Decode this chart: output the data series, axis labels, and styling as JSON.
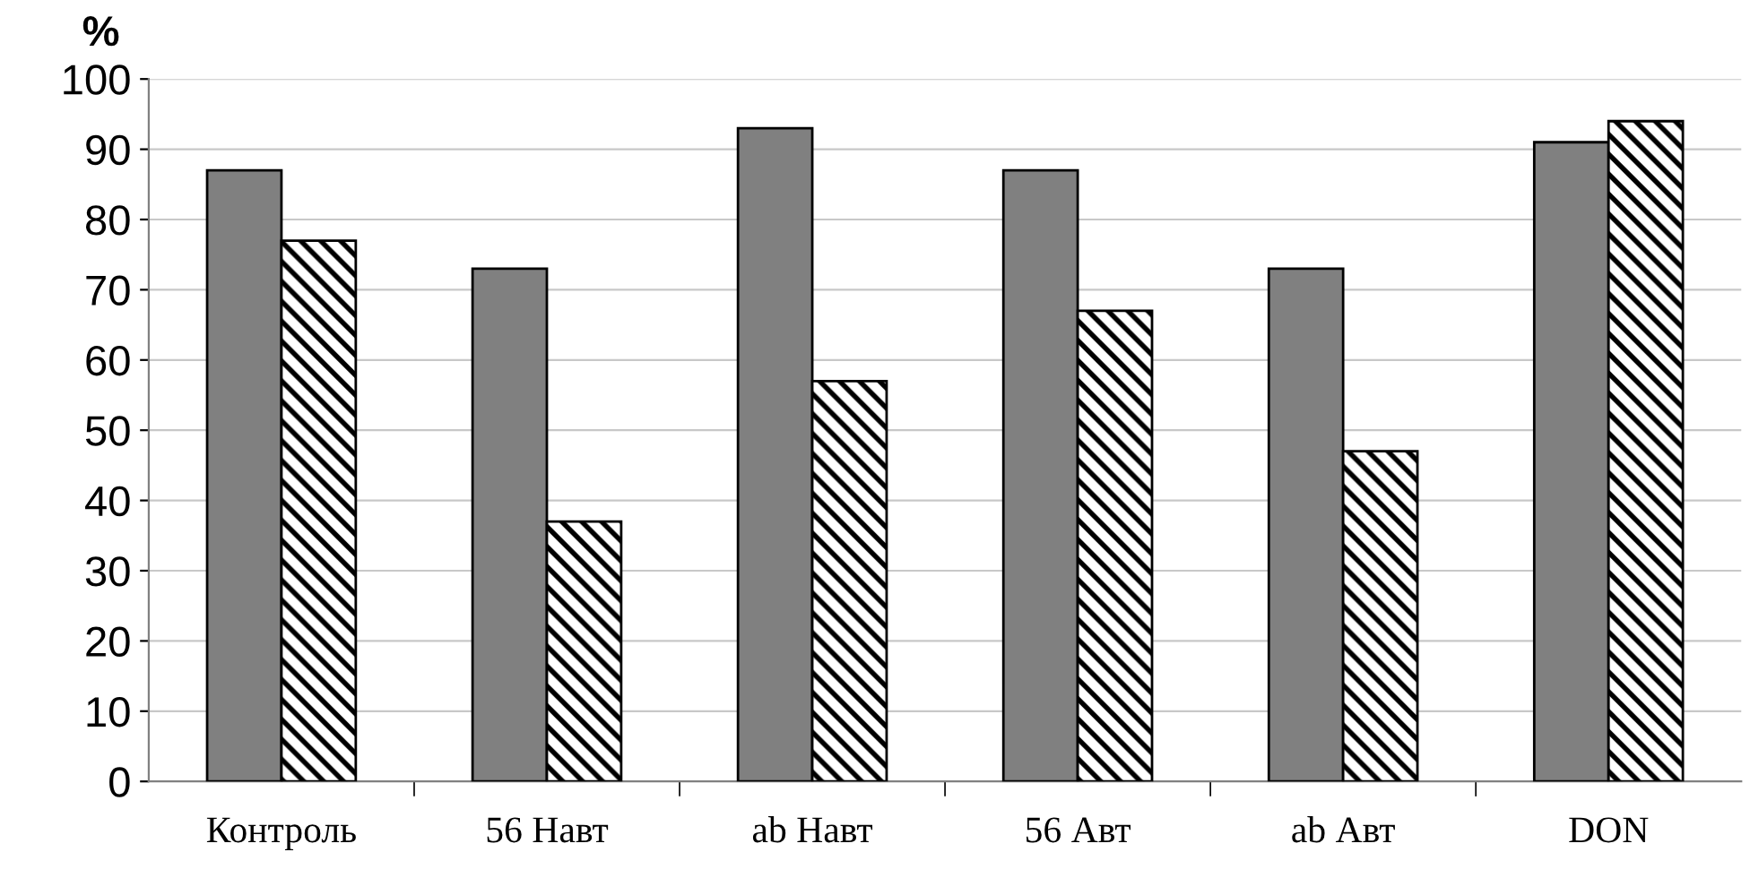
{
  "chart_data": {
    "type": "bar",
    "ylabel": "%",
    "categories": [
      "Контроль",
      "56 Навт",
      "ab Навт",
      "56 Авт",
      "ab Авт",
      "DON"
    ],
    "series": [
      {
        "color": "#808080",
        "values": [
          87,
          73,
          93,
          87,
          73,
          91
        ]
      },
      {
        "color": "#000000",
        "values": [
          77,
          37,
          57,
          67,
          47,
          94
        ]
      }
    ],
    "ylim": [
      0,
      100
    ],
    "yticks": [
      0,
      10,
      20,
      30,
      40,
      50,
      60,
      70,
      80,
      90,
      100
    ],
    "grid": "y",
    "legend": false
  }
}
